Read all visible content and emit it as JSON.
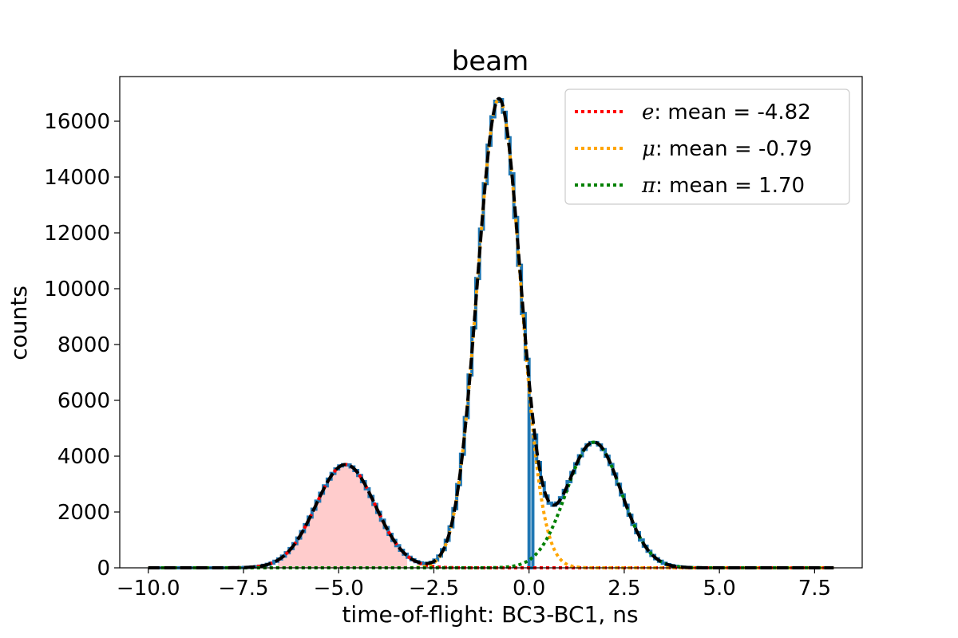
{
  "chart_data": {
    "type": "histogram",
    "title": "beam",
    "xlabel": "time-of-flight: BC3-BC1, ns",
    "ylabel": "counts",
    "xlim": [
      -10.75,
      8.75
    ],
    "ylim": [
      0,
      17600
    ],
    "xticks": [
      -10.0,
      -7.5,
      -5.0,
      -2.5,
      0.0,
      2.5,
      5.0,
      7.5
    ],
    "xtick_labels": [
      "−10.0",
      "−7.5",
      "−5.0",
      "−2.5",
      "0.0",
      "2.5",
      "5.0",
      "7.5"
    ],
    "yticks": [
      0,
      2000,
      4000,
      6000,
      8000,
      10000,
      12000,
      14000,
      16000
    ],
    "ytick_labels": [
      "0",
      "2000",
      "4000",
      "6000",
      "8000",
      "10000",
      "12000",
      "14000",
      "16000"
    ],
    "grid": false,
    "legend_position": "top-right",
    "histogram": {
      "color": "#1f77b4",
      "bin_range": [
        -10,
        8
      ],
      "bin_width": 0.1,
      "dip": {
        "start": 0.0,
        "end": 0.1,
        "value": 0
      }
    },
    "components": [
      {
        "name": "e",
        "label": ": mean = -4.82",
        "mean": -4.82,
        "sigma": 0.78,
        "amplitude": 3700,
        "color": "#ff0000"
      },
      {
        "name": "μ",
        "label": ": mean = -0.79",
        "mean": -0.79,
        "sigma": 0.57,
        "amplitude": 16800,
        "color": "#ffa500"
      },
      {
        "name": "π",
        "label": ": mean = 1.70",
        "mean": 1.7,
        "sigma": 0.72,
        "amplitude": 4500,
        "color": "#008000"
      }
    ],
    "total_fit": {
      "color": "#000000",
      "style": "dashed"
    },
    "shaded_region": {
      "x_range": [
        -6.6,
        -3.2
      ],
      "component": "e",
      "color": "#ffcccc"
    }
  }
}
